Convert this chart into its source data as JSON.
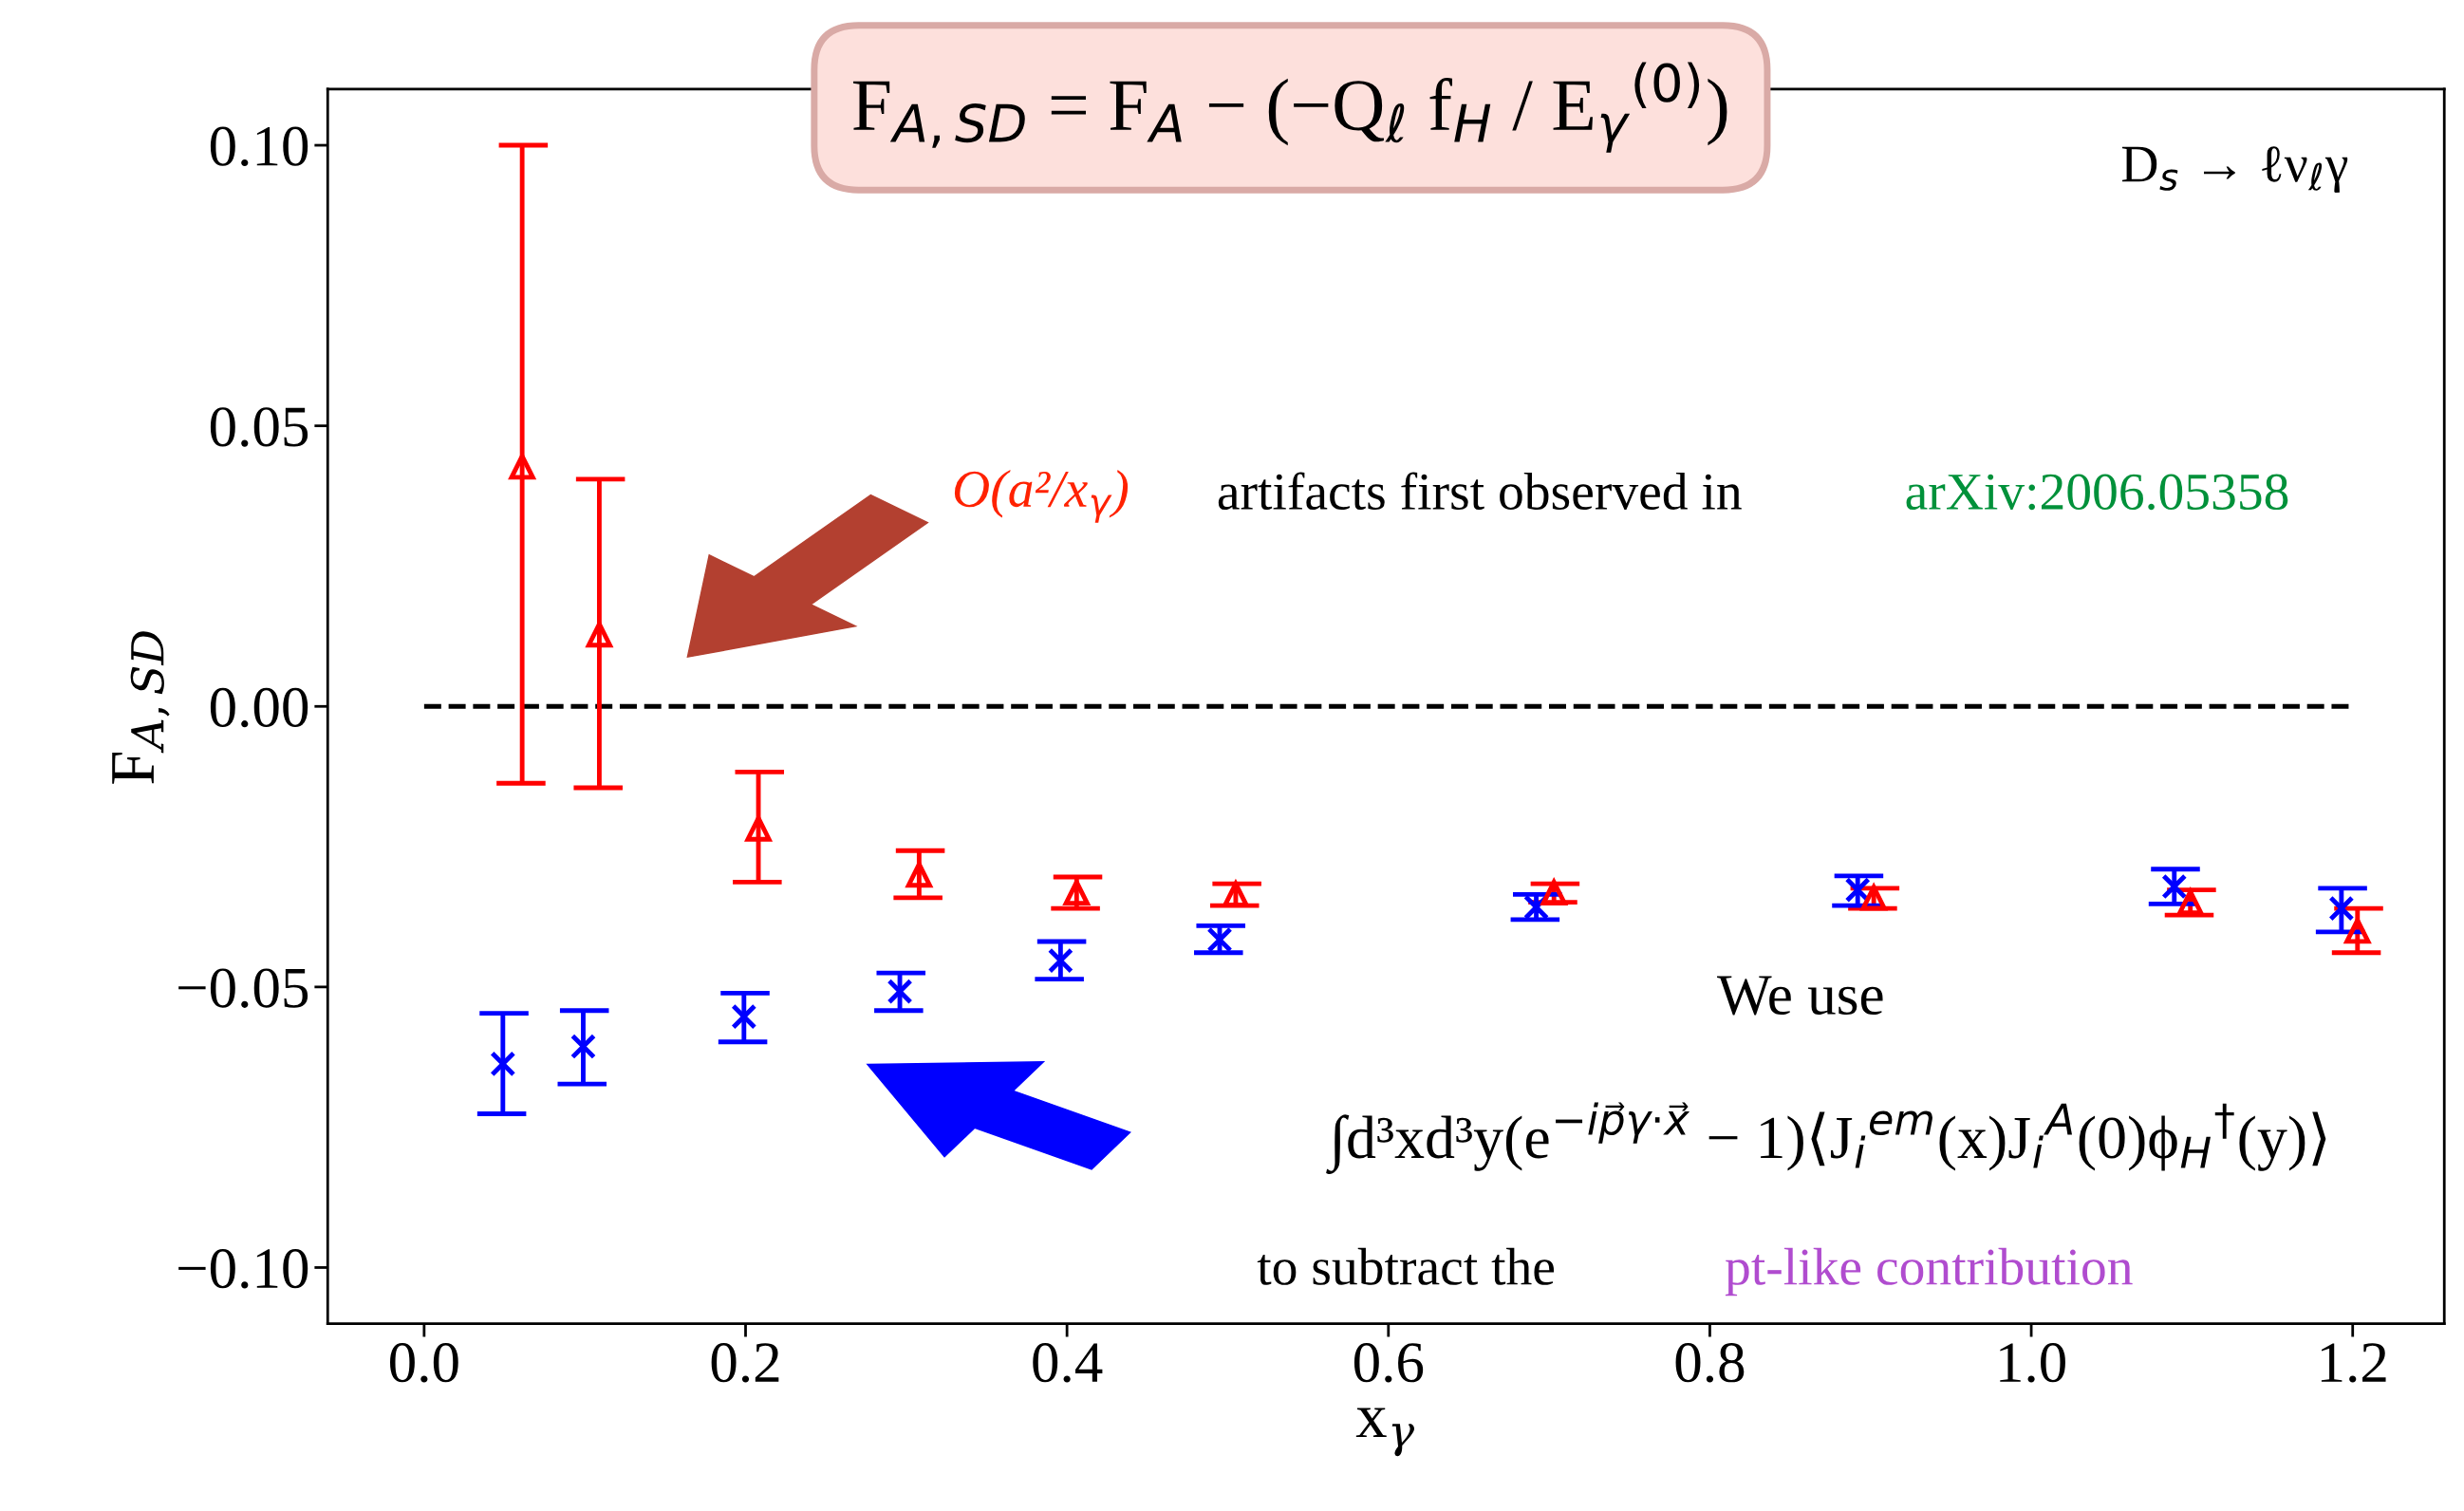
{
  "chart_data": {
    "type": "scatter",
    "xlabel": "x$_{γ}$",
    "ylabel": "F$_{A,SD}$",
    "xlim": [
      -0.06,
      1.257
    ],
    "ylim": [
      -0.11,
      0.11
    ],
    "xticks": [
      {
        "value": 0.0,
        "label": "0.0"
      },
      {
        "value": 0.2,
        "label": "0.2"
      },
      {
        "value": 0.4,
        "label": "0.4"
      },
      {
        "value": 0.6,
        "label": "0.6"
      },
      {
        "value": 0.8,
        "label": "0.8"
      },
      {
        "value": 1.0,
        "label": "1.0"
      },
      {
        "value": 1.2,
        "label": "1.2"
      }
    ],
    "yticks": [
      {
        "value": -0.1,
        "label": "−0.10"
      },
      {
        "value": -0.05,
        "label": "−0.05"
      },
      {
        "value": 0.0,
        "label": "0.00"
      },
      {
        "value": 0.05,
        "label": "0.05"
      },
      {
        "value": 0.1,
        "label": "0.10"
      }
    ],
    "grid": false,
    "legend": false,
    "series": [
      {
        "type": "line",
        "color": "#000000",
        "line_style": "dashed",
        "marker": "none",
        "x": [
          0.0,
          1.2
        ],
        "values": [
          0.0,
          0.0
        ]
      },
      {
        "color": "#ff0000",
        "marker": "triangle",
        "x": [
          0.061,
          0.109,
          0.208,
          0.308,
          0.406,
          0.505,
          0.703,
          0.902,
          1.099,
          1.203
        ],
        "values": [
          0.0427,
          0.0128,
          -0.0218,
          -0.03,
          -0.0332,
          -0.0335,
          -0.0332,
          -0.0341,
          -0.0349,
          -0.04
        ],
        "errors": [
          [
            -0.0137,
            0.1
          ],
          [
            -0.0145,
            0.0405
          ],
          [
            -0.0313,
            -0.0117
          ],
          [
            -0.0341,
            -0.0257
          ],
          [
            -0.036,
            -0.0304
          ],
          [
            -0.0355,
            -0.0316
          ],
          [
            -0.0349,
            -0.0316
          ],
          [
            -0.036,
            -0.0324
          ],
          [
            -0.0372,
            -0.0327
          ],
          [
            -0.0439,
            -0.036
          ]
        ]
      },
      {
        "color": "#0000ff",
        "marker": "cross",
        "x": [
          0.049,
          0.099,
          0.199,
          0.296,
          0.396,
          0.495,
          0.692,
          0.892,
          1.089,
          1.193
        ],
        "values": [
          -0.0637,
          -0.0606,
          -0.0553,
          -0.0508,
          -0.0453,
          -0.0416,
          -0.0358,
          -0.0327,
          -0.0321,
          -0.036
        ],
        "errors": [
          [
            -0.0726,
            -0.0547
          ],
          [
            -0.0673,
            -0.0542
          ],
          [
            -0.0598,
            -0.0511
          ],
          [
            -0.0542,
            -0.0475
          ],
          [
            -0.0486,
            -0.0419
          ],
          [
            -0.0439,
            -0.0391
          ],
          [
            -0.038,
            -0.0335
          ],
          [
            -0.0355,
            -0.0302
          ],
          [
            -0.0352,
            -0.029
          ],
          [
            -0.0402,
            -0.0324
          ]
        ]
      }
    ],
    "annotations": [
      "F$_{A,SD}$ = F$_{A}$ − (−Q$_{ℓ}$ f$_{H}$ / E$_{γ}$$^{(0)}$)",
      "D$_{s}$ → ℓν$_{ℓ}$γ",
      "O(a²/x$_{γ}$)",
      "artifacts first observed in",
      "arXiv:2006.05358",
      "We use",
      "∫d³xd³y(e$^{−ip⃗γ·x⃗}$ − 1)⟨J$_{i}$$^{em}$(x)J$_{i}$$^{A}$(0)ϕ$_{H}$$^{†}$(y)⟩",
      "to subtract the",
      "pt-like contribution"
    ]
  }
}
